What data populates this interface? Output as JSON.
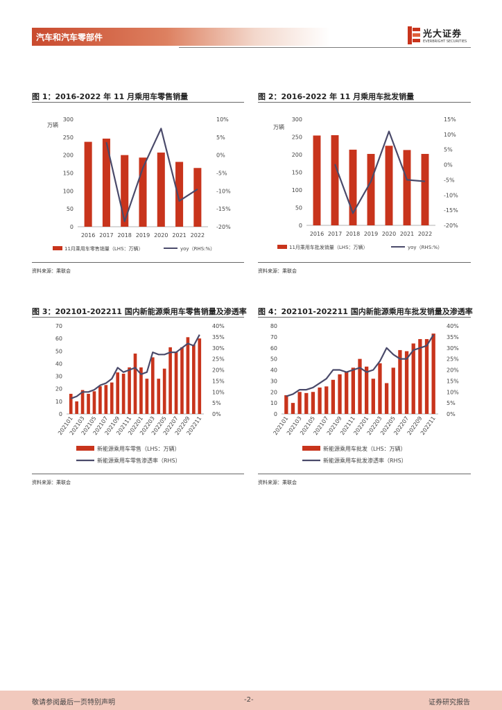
{
  "header": {
    "section": "汽车和汽车零部件"
  },
  "logo": {
    "cn": "光大证券",
    "en": "EVERBRIGHT SECURITIES"
  },
  "colors": {
    "bar": "#c8341c",
    "line": "#4a4a6a",
    "accent": "#c94a2e"
  },
  "figures": [
    {
      "title": "图 1：2016-2022 年 11 月乘用车零售销量",
      "source": "资料来源：乘联会"
    },
    {
      "title": "图 2：2016-2022 年 11 月乘用车批发销量",
      "source": "资料来源：乘联会"
    },
    {
      "title": "图 3：202101-202211 国内新能源乘用车零售销量及渗透率",
      "source": "资料来源：乘联会"
    },
    {
      "title": "图 4：202101-202211 国内新能源乘用车批发销量及渗透率",
      "source": "资料来源：乘联会"
    }
  ],
  "chart_data": [
    {
      "type": "bar+line",
      "title": "图 1：2016-2022 年 11 月乘用车零售销量",
      "unit": "万辆",
      "categories": [
        "2016",
        "2017",
        "2018",
        "2019",
        "2020",
        "2021",
        "2022"
      ],
      "series": [
        {
          "name": "11月乘用车零售销量（LHS：万辆）",
          "kind": "bar",
          "axis": "left",
          "values": [
            237,
            246,
            200,
            193,
            207,
            181,
            164
          ]
        },
        {
          "name": "yoy（RHS:%）",
          "kind": "line",
          "axis": "right",
          "values": [
            null,
            3.6,
            -18.5,
            -3.6,
            7.4,
            -12.8,
            -9.5
          ]
        }
      ],
      "ylim_left": [
        0,
        300
      ],
      "yticks_left": [
        "0",
        "50",
        "100",
        "150",
        "200",
        "250",
        "300"
      ],
      "ylim_right": [
        -20,
        10
      ],
      "yticks_right": [
        "-20%",
        "-15%",
        "-10%",
        "-5%",
        "0%",
        "5%",
        "10%"
      ]
    },
    {
      "type": "bar+line",
      "title": "图 2：2016-2022 年 11 月乘用车批发销量",
      "unit": "万辆",
      "categories": [
        "2016",
        "2017",
        "2018",
        "2019",
        "2020",
        "2021",
        "2022"
      ],
      "series": [
        {
          "name": "11月乘用车批发销量（LHS：万辆）",
          "kind": "bar",
          "axis": "left",
          "values": [
            254,
            255,
            214,
            202,
            225,
            213,
            202
          ]
        },
        {
          "name": "yoy（RHS:%）",
          "kind": "line",
          "axis": "right",
          "values": [
            null,
            0.2,
            -16.0,
            -5.5,
            11.0,
            -5.0,
            -5.5
          ]
        }
      ],
      "ylim_left": [
        0,
        300
      ],
      "yticks_left": [
        "0",
        "50",
        "100",
        "150",
        "200",
        "250",
        "300"
      ],
      "ylim_right": [
        -20,
        15
      ],
      "yticks_right": [
        "-20%",
        "-15%",
        "-10%",
        "-5%",
        "0%",
        "5%",
        "10%",
        "15%"
      ]
    },
    {
      "type": "bar+line",
      "title": "图 3：202101-202211 国内新能源乘用车零售销量及渗透率",
      "categories": [
        "202101",
        "202102",
        "202103",
        "202104",
        "202105",
        "202106",
        "202107",
        "202108",
        "202109",
        "202110",
        "202111",
        "202112",
        "202201",
        "202202",
        "202203",
        "202204",
        "202205",
        "202206",
        "202207",
        "202208",
        "202209",
        "202210",
        "202211"
      ],
      "xtick_labels": [
        "202101",
        "202103",
        "202105",
        "202107",
        "202109",
        "202111",
        "202201",
        "202203",
        "202205",
        "202207",
        "202209",
        "202211"
      ],
      "series": [
        {
          "name": "新能源乘用车零售（LHS：万辆）",
          "kind": "bar",
          "axis": "left",
          "values": [
            16,
            10,
            19,
            16,
            18,
            22,
            23,
            25,
            33,
            32,
            37,
            48,
            37,
            28,
            45,
            28,
            36,
            53,
            49,
            53,
            61,
            55,
            60
          ]
        },
        {
          "name": "新能源乘用车零售渗透率（RHS）",
          "kind": "line",
          "axis": "right",
          "values": [
            7,
            8,
            10,
            10,
            11,
            13,
            14,
            16,
            21,
            19,
            20,
            21,
            18,
            19,
            28,
            27,
            27,
            28,
            28,
            30,
            32,
            31,
            36
          ]
        }
      ],
      "ylim_left": [
        0,
        70
      ],
      "yticks_left": [
        "0",
        "10",
        "20",
        "30",
        "40",
        "50",
        "60",
        "70"
      ],
      "ylim_right": [
        0,
        40
      ],
      "yticks_right": [
        "0%",
        "5%",
        "10%",
        "15%",
        "20%",
        "25%",
        "30%",
        "35%",
        "40%"
      ]
    },
    {
      "type": "bar+line",
      "title": "图 4：202101-202211 国内新能源乘用车批发销量及渗透率",
      "categories": [
        "202101",
        "202102",
        "202103",
        "202104",
        "202105",
        "202106",
        "202107",
        "202108",
        "202109",
        "202110",
        "202111",
        "202112",
        "202201",
        "202202",
        "202203",
        "202204",
        "202205",
        "202206",
        "202207",
        "202208",
        "202209",
        "202210",
        "202211"
      ],
      "xtick_labels": [
        "202101",
        "202103",
        "202105",
        "202107",
        "202109",
        "202111",
        "202201",
        "202203",
        "202205",
        "202207",
        "202209",
        "202211"
      ],
      "series": [
        {
          "name": "新能源乘用车批发（LHS：万辆）",
          "kind": "bar",
          "axis": "left",
          "values": [
            17,
            10,
            20,
            19,
            20,
            24,
            25,
            31,
            36,
            38,
            42,
            50,
            43,
            32,
            46,
            28,
            42,
            58,
            57,
            64,
            68,
            68,
            73
          ]
        },
        {
          "name": "新能源乘用车批发渗透率（RHS）",
          "kind": "line",
          "axis": "right",
          "values": [
            8,
            9,
            11,
            11,
            12,
            14,
            16,
            20,
            20,
            19,
            20,
            21,
            19,
            20,
            24,
            30,
            27,
            25,
            25,
            29,
            30,
            31,
            36
          ]
        }
      ],
      "ylim_left": [
        0,
        80
      ],
      "yticks_left": [
        "0",
        "10",
        "20",
        "30",
        "40",
        "50",
        "60",
        "70",
        "80"
      ],
      "ylim_right": [
        0,
        40
      ],
      "yticks_right": [
        "0%",
        "5%",
        "10%",
        "15%",
        "20%",
        "25%",
        "30%",
        "35%",
        "40%"
      ]
    }
  ],
  "footer": {
    "left": "敬请参阅最后一页特别声明",
    "center": "-2-",
    "right": "证券研究报告"
  }
}
